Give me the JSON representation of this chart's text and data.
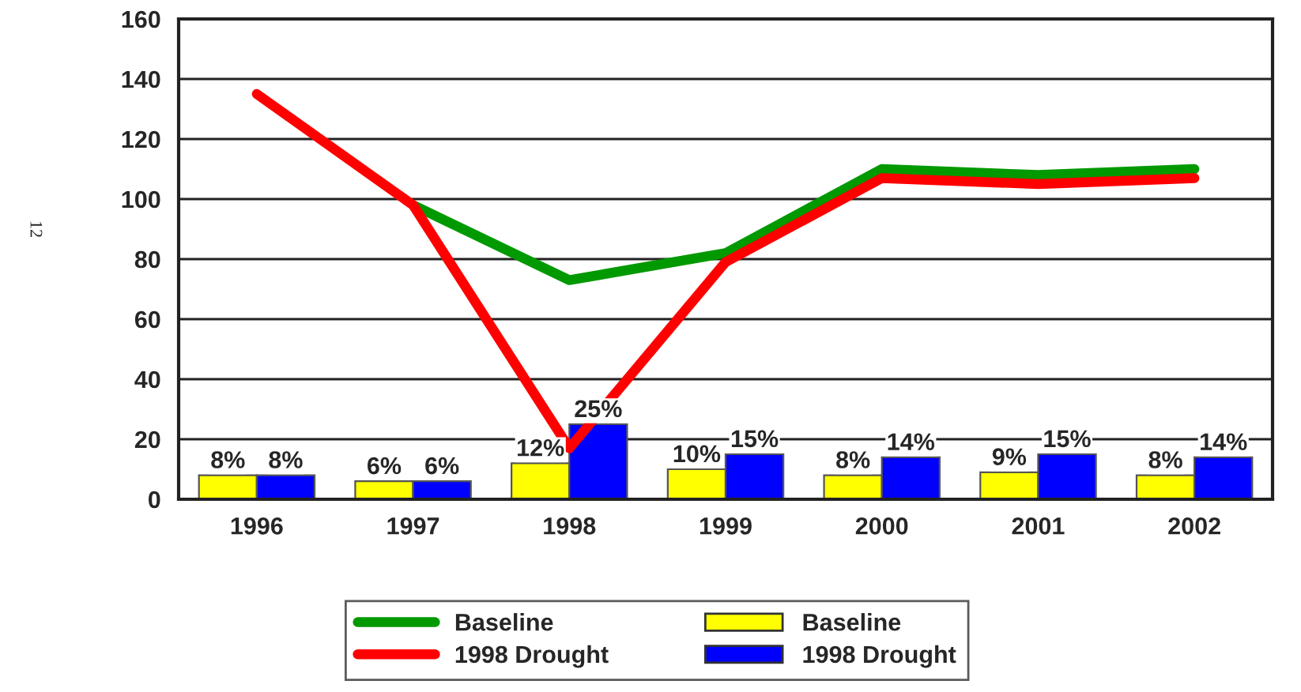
{
  "chart_data": {
    "type": "bar",
    "categories": [
      "1996",
      "1997",
      "1998",
      "1999",
      "2000",
      "2001",
      "2002"
    ],
    "series": [
      {
        "name": "Baseline",
        "type": "line",
        "color": "#009900",
        "values": [
          null,
          98,
          73,
          82,
          110,
          108,
          110
        ]
      },
      {
        "name": "1998 Drought",
        "type": "line",
        "color": "#ff0000",
        "values": [
          135,
          98,
          17,
          79,
          107,
          105,
          107
        ]
      },
      {
        "name": "Baseline",
        "color": "#ffff00",
        "values": [
          8,
          6,
          12,
          10,
          8,
          9,
          8
        ],
        "value_labels": [
          "8%",
          "6%",
          "12%",
          "10%",
          "8%",
          "9%",
          "8%"
        ]
      },
      {
        "name": "1998 Drought",
        "color": "#0000ff",
        "values": [
          8,
          6,
          25,
          15,
          14,
          15,
          14
        ],
        "value_labels": [
          "8%",
          "6%",
          "25%",
          "15%",
          "14%",
          "15%",
          "14%"
        ]
      }
    ],
    "ylim": [
      0,
      160
    ],
    "yticks": [
      0,
      20,
      40,
      60,
      80,
      100,
      120,
      140,
      160
    ],
    "grid": "y",
    "legend": "bottom",
    "annotations": [
      "12"
    ]
  }
}
